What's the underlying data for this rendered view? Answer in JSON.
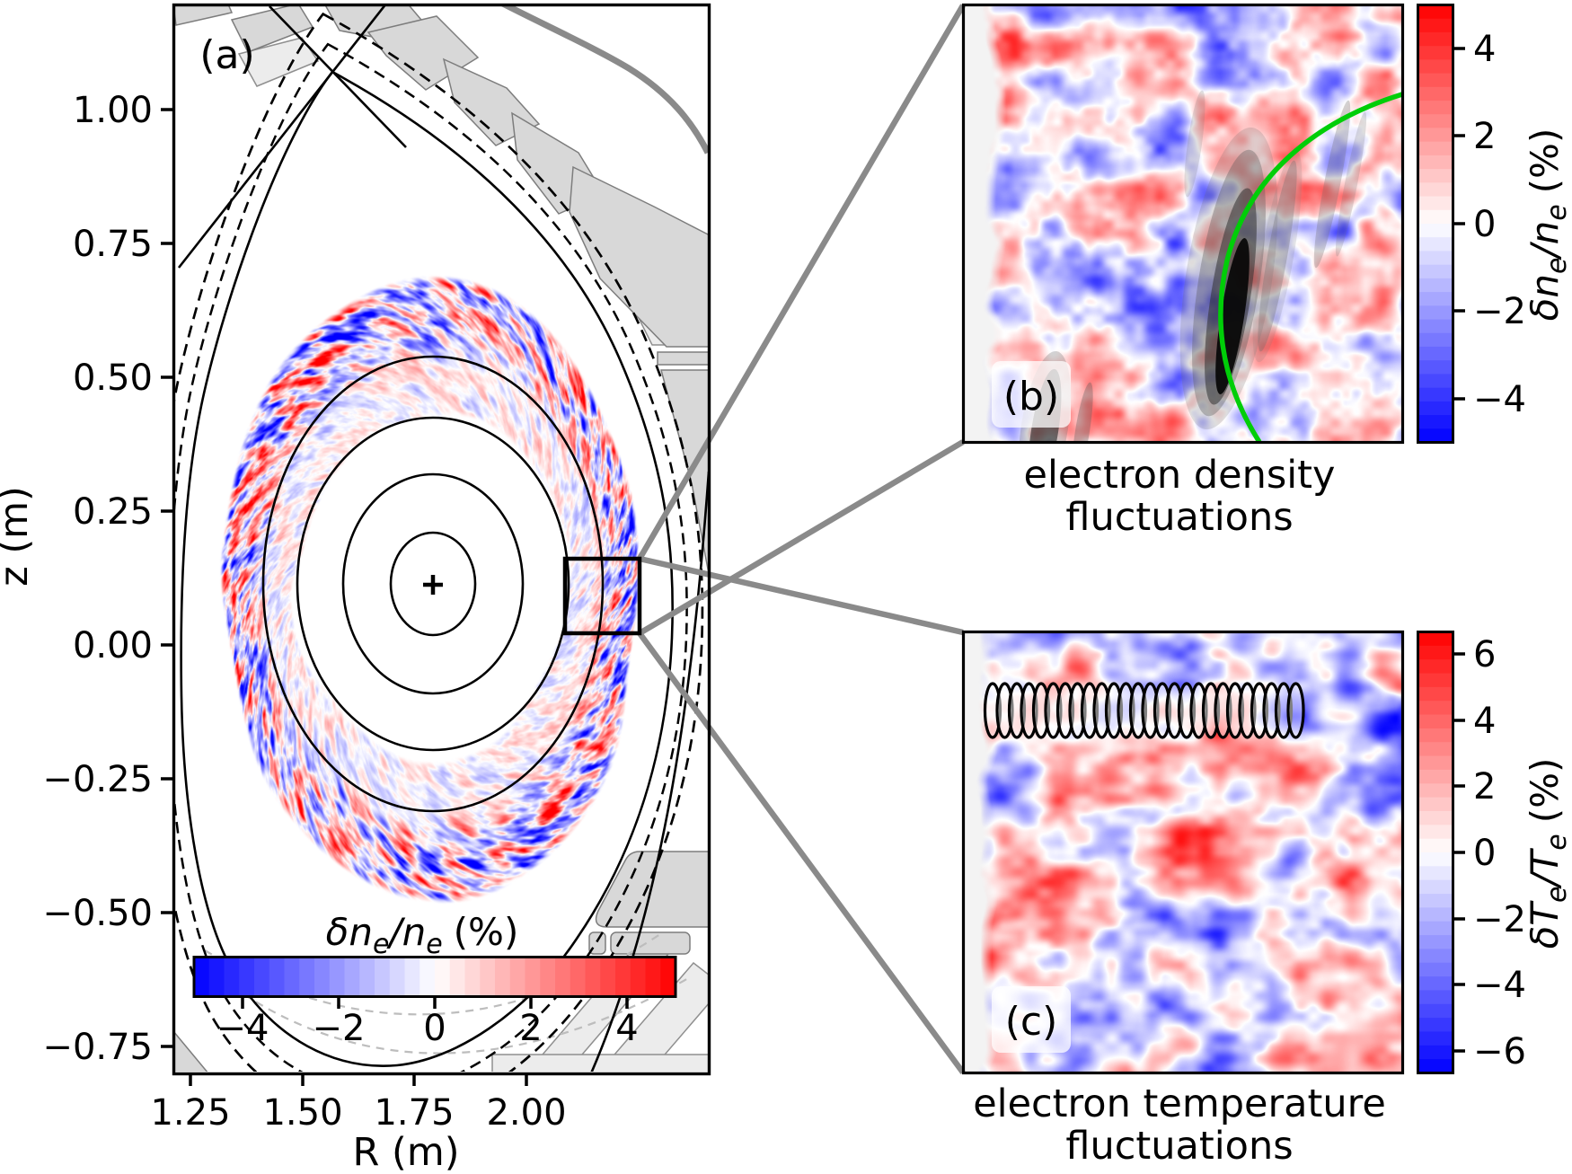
{
  "figure": {
    "panel_a": {
      "label": "(a)",
      "xlabel": "R (m)",
      "ylabel": "z (m)",
      "x_tick_labels": [
        "1.25",
        "1.50",
        "1.75",
        "2.00"
      ],
      "y_tick_labels": [
        "1.00",
        "0.75",
        "0.50",
        "0.25",
        "0.00",
        "−0.25",
        "−0.50",
        "−0.75"
      ],
      "marker": "+",
      "colorbar": {
        "sym": "δn",
        "sub1": "e",
        "mid": "/n",
        "sub2": "e",
        "unit": "(%)",
        "tick_labels": [
          "−4",
          "−2",
          "0",
          "2",
          "4"
        ]
      }
    },
    "panel_b": {
      "label": "(b)",
      "caption_line1": "electron density",
      "caption_line2": "fluctuations",
      "colorbar": {
        "sym": "δn",
        "sub1": "e",
        "mid": "/n",
        "sub2": "e",
        "unit": "(%)",
        "tick_labels": [
          "4",
          "2",
          "0",
          "−2",
          "−4"
        ]
      }
    },
    "panel_c": {
      "label": "(c)",
      "caption_line1": "electron temperature",
      "caption_line2": "fluctuations",
      "colorbar": {
        "sym": "δT",
        "sub1": "e",
        "mid": "/T",
        "sub2": "e",
        "unit": "(%)",
        "tick_labels": [
          "6",
          "4",
          "2",
          "0",
          "−2",
          "−4",
          "−6"
        ]
      }
    },
    "colors": {
      "cmap_positive": "#ff0000",
      "cmap_negative": "#0000ff",
      "wall_gray": "#d8d8d8",
      "wall_light_gray": "#ececec",
      "connector_gray": "#8a8a8a",
      "green_curve": "#00ce08"
    }
  },
  "chart_data": [
    {
      "id": "a",
      "type": "heatmap",
      "title": "(a) tokamak poloidal cross-section with edge turbulence ring",
      "quantity": "electron density fluctuations",
      "xlabel": "R (m)",
      "ylabel": "z (m)",
      "x_ticks": [
        1.25,
        1.5,
        1.75,
        2.0
      ],
      "y_ticks": [
        1.0,
        0.75,
        0.5,
        0.25,
        0.0,
        -0.25,
        -0.5,
        -0.75
      ],
      "xlim": [
        1.21,
        2.41
      ],
      "ylim": [
        -0.8,
        1.2
      ],
      "colorbar": {
        "label": "δne/ne (%)",
        "orientation": "horizontal",
        "ticks": [
          -4,
          -2,
          0,
          2,
          4
        ],
        "range": [
          -5,
          5
        ],
        "colormap": "blue-white-red"
      },
      "annotations": [
        "nested closed flux surfaces",
        "magnetic axis + marker near R=1.68, z=0.11",
        "black zoom-region box near R=2.1, z=0.1",
        "gray vessel and divertor wall structures",
        "dashed scrape-off-layer flux surfaces"
      ]
    },
    {
      "id": "b",
      "type": "heatmap",
      "caption": "electron density fluctuations",
      "quantity": "electron density fluctuations (zoom of box in panel a)",
      "colorbar": {
        "label": "δne/ne (%)",
        "orientation": "vertical",
        "ticks": [
          4,
          2,
          0,
          -2,
          -4
        ],
        "range": [
          -5,
          5
        ],
        "colormap": "blue-white-red"
      },
      "annotations": [
        "green separatrix curve",
        "gray/black tilted beam contours"
      ]
    },
    {
      "id": "c",
      "type": "heatmap",
      "caption": "electron temperature fluctuations",
      "quantity": "electron temperature fluctuations (zoom of box in panel a)",
      "colorbar": {
        "label": "δTe/Te (%)",
        "orientation": "vertical",
        "ticks": [
          6,
          4,
          2,
          0,
          -2,
          -4,
          -6
        ],
        "range": [
          -6.7,
          6.7
        ],
        "colormap": "blue-white-red"
      },
      "annotations": [
        "horizontal chain of 26 black-outlined measurement-volume ellipses near top"
      ]
    }
  ]
}
